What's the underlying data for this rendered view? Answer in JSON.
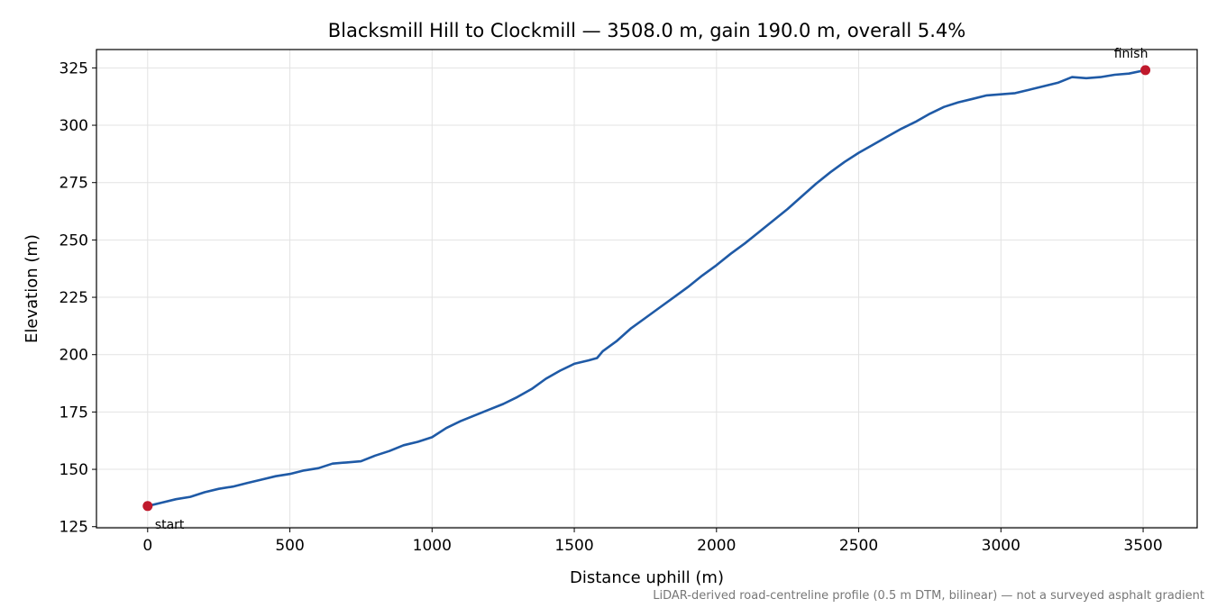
{
  "chart_data": {
    "type": "line",
    "title": "Blacksmill Hill to Clockmill — 3508.0 m, gain 190.0 m, overall 5.4%",
    "xlabel": "Distance uphill (m)",
    "ylabel": "Elevation (m)",
    "xlim": [
      -180,
      3690
    ],
    "ylim": [
      124.5,
      333
    ],
    "xticks": [
      0,
      500,
      1000,
      1500,
      2000,
      2500,
      3000,
      3500
    ],
    "yticks": [
      125,
      150,
      175,
      200,
      225,
      250,
      275,
      300,
      325
    ],
    "grid": true,
    "series": [
      {
        "color": "#1f5aa6",
        "x": [
          0,
          50,
          100,
          150,
          200,
          250,
          300,
          350,
          400,
          450,
          500,
          550,
          600,
          650,
          700,
          750,
          800,
          850,
          900,
          950,
          1000,
          1050,
          1100,
          1150,
          1200,
          1250,
          1300,
          1350,
          1400,
          1450,
          1500,
          1550,
          1580,
          1600,
          1650,
          1700,
          1750,
          1800,
          1850,
          1900,
          1950,
          2000,
          2050,
          2100,
          2150,
          2200,
          2250,
          2300,
          2350,
          2400,
          2450,
          2500,
          2550,
          2600,
          2650,
          2700,
          2750,
          2800,
          2850,
          2900,
          2950,
          3000,
          3050,
          3100,
          3150,
          3200,
          3250,
          3300,
          3350,
          3400,
          3450,
          3508
        ],
        "y": [
          134,
          135.5,
          137,
          138,
          140,
          141.5,
          142.5,
          144,
          145.5,
          147,
          148,
          149.5,
          150.5,
          152.5,
          153,
          153.5,
          156,
          158,
          160.5,
          162,
          164,
          168,
          171,
          173.5,
          176,
          178.5,
          181.5,
          185,
          189.5,
          193,
          196,
          197.5,
          198.5,
          201.5,
          206,
          211.5,
          216,
          220.5,
          225,
          229.5,
          234.5,
          239,
          244,
          248.5,
          253.5,
          258.5,
          263.5,
          269,
          274.5,
          279.5,
          284,
          288,
          291.5,
          295,
          298.5,
          301.5,
          305,
          308,
          310,
          311.5,
          313,
          313.5,
          314,
          315.5,
          317,
          318.5,
          321,
          320.5,
          321,
          322,
          322.5,
          324
        ]
      }
    ],
    "points": [
      {
        "label": "start",
        "x": 0,
        "y": 134,
        "color": "#c0192c"
      },
      {
        "label": "finish",
        "x": 3508,
        "y": 324,
        "color": "#c0192c"
      }
    ],
    "footnote": "LiDAR-derived road-centreline profile (0.5 m DTM, bilinear) — not a surveyed asphalt gradient"
  }
}
